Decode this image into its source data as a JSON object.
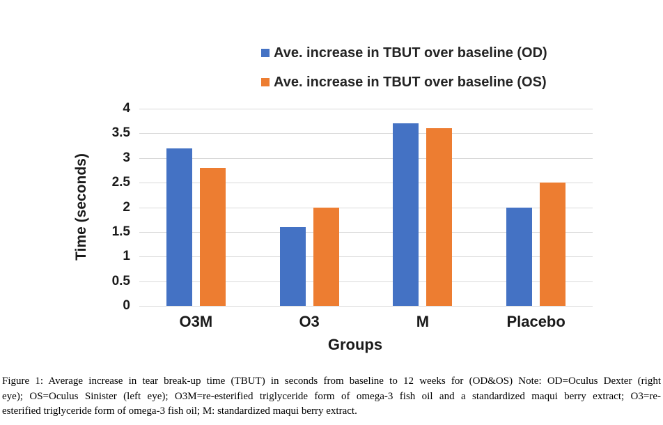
{
  "chart_data": {
    "type": "bar",
    "title": "",
    "categories": [
      "O3M",
      "O3",
      "M",
      "Placebo"
    ],
    "series": [
      {
        "name": "Ave. increase in TBUT over baseline (OD)",
        "color": "#4472c4",
        "values": [
          3.2,
          1.6,
          3.7,
          2
        ]
      },
      {
        "name": "Ave. increase in TBUT over baseline (OS)",
        "color": "#ed7d31",
        "values": [
          2.8,
          2,
          3.6,
          2.5
        ]
      }
    ],
    "xlabel": "Groups",
    "ylabel": "Time (seconds)",
    "ylim": [
      0,
      4
    ],
    "ytick_step": 0.5,
    "ytick_labels": [
      "0",
      "0.5",
      "1",
      "1.5",
      "2",
      "2.5",
      "3",
      "3.5",
      "4"
    ],
    "grid": true,
    "gridline_color": "#d9d9d9",
    "legend_position": "top"
  },
  "caption": {
    "lines": [
      "Figure 1: Average increase in tear break-up time (TBUT) in seconds from baseline to 12 weeks for (OD&OS) Note: OD=Oculus Dexter (right",
      "eye); OS=Oculus Sinister (left eye); O3M=re-esterified triglyceride form of omega-3 fish oil and a standardized maqui berry extract; O3=re-",
      "esterified triglyceride form of omega-3 fish oil; M: standardized maqui berry extract."
    ]
  }
}
